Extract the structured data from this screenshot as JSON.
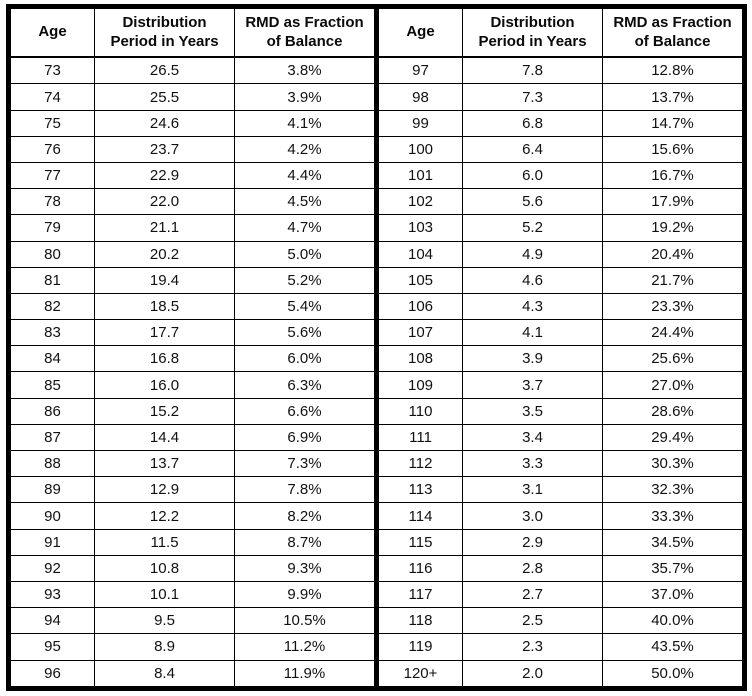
{
  "headers": {
    "age": "Age",
    "distribution_period": "Distribution\nPeriod in Years",
    "rmd_fraction": "RMD as Fraction\nof Balance"
  },
  "colors": {
    "border": "#000000",
    "text": "#111111",
    "background": "#ffffff"
  },
  "chart_data": {
    "type": "table",
    "title": "",
    "columns": [
      "Age",
      "Distribution Period in Years",
      "RMD as Fraction of Balance"
    ],
    "layout": "two side-by-side panels sharing the same three columns",
    "panels": [
      {
        "rows": [
          [
            "73",
            "26.5",
            "3.8%"
          ],
          [
            "74",
            "25.5",
            "3.9%"
          ],
          [
            "75",
            "24.6",
            "4.1%"
          ],
          [
            "76",
            "23.7",
            "4.2%"
          ],
          [
            "77",
            "22.9",
            "4.4%"
          ],
          [
            "78",
            "22.0",
            "4.5%"
          ],
          [
            "79",
            "21.1",
            "4.7%"
          ],
          [
            "80",
            "20.2",
            "5.0%"
          ],
          [
            "81",
            "19.4",
            "5.2%"
          ],
          [
            "82",
            "18.5",
            "5.4%"
          ],
          [
            "83",
            "17.7",
            "5.6%"
          ],
          [
            "84",
            "16.8",
            "6.0%"
          ],
          [
            "85",
            "16.0",
            "6.3%"
          ],
          [
            "86",
            "15.2",
            "6.6%"
          ],
          [
            "87",
            "14.4",
            "6.9%"
          ],
          [
            "88",
            "13.7",
            "7.3%"
          ],
          [
            "89",
            "12.9",
            "7.8%"
          ],
          [
            "90",
            "12.2",
            "8.2%"
          ],
          [
            "91",
            "11.5",
            "8.7%"
          ],
          [
            "92",
            "10.8",
            "9.3%"
          ],
          [
            "93",
            "10.1",
            "9.9%"
          ],
          [
            "94",
            "9.5",
            "10.5%"
          ],
          [
            "95",
            "8.9",
            "11.2%"
          ],
          [
            "96",
            "8.4",
            "11.9%"
          ]
        ]
      },
      {
        "rows": [
          [
            "97",
            "7.8",
            "12.8%"
          ],
          [
            "98",
            "7.3",
            "13.7%"
          ],
          [
            "99",
            "6.8",
            "14.7%"
          ],
          [
            "100",
            "6.4",
            "15.6%"
          ],
          [
            "101",
            "6.0",
            "16.7%"
          ],
          [
            "102",
            "5.6",
            "17.9%"
          ],
          [
            "103",
            "5.2",
            "19.2%"
          ],
          [
            "104",
            "4.9",
            "20.4%"
          ],
          [
            "105",
            "4.6",
            "21.7%"
          ],
          [
            "106",
            "4.3",
            "23.3%"
          ],
          [
            "107",
            "4.1",
            "24.4%"
          ],
          [
            "108",
            "3.9",
            "25.6%"
          ],
          [
            "109",
            "3.7",
            "27.0%"
          ],
          [
            "110",
            "3.5",
            "28.6%"
          ],
          [
            "111",
            "3.4",
            "29.4%"
          ],
          [
            "112",
            "3.3",
            "30.3%"
          ],
          [
            "113",
            "3.1",
            "32.3%"
          ],
          [
            "114",
            "3.0",
            "33.3%"
          ],
          [
            "115",
            "2.9",
            "34.5%"
          ],
          [
            "116",
            "2.8",
            "35.7%"
          ],
          [
            "117",
            "2.7",
            "37.0%"
          ],
          [
            "118",
            "2.5",
            "40.0%"
          ],
          [
            "119",
            "2.3",
            "43.5%"
          ],
          [
            "120+",
            "2.0",
            "50.0%"
          ]
        ]
      }
    ]
  }
}
